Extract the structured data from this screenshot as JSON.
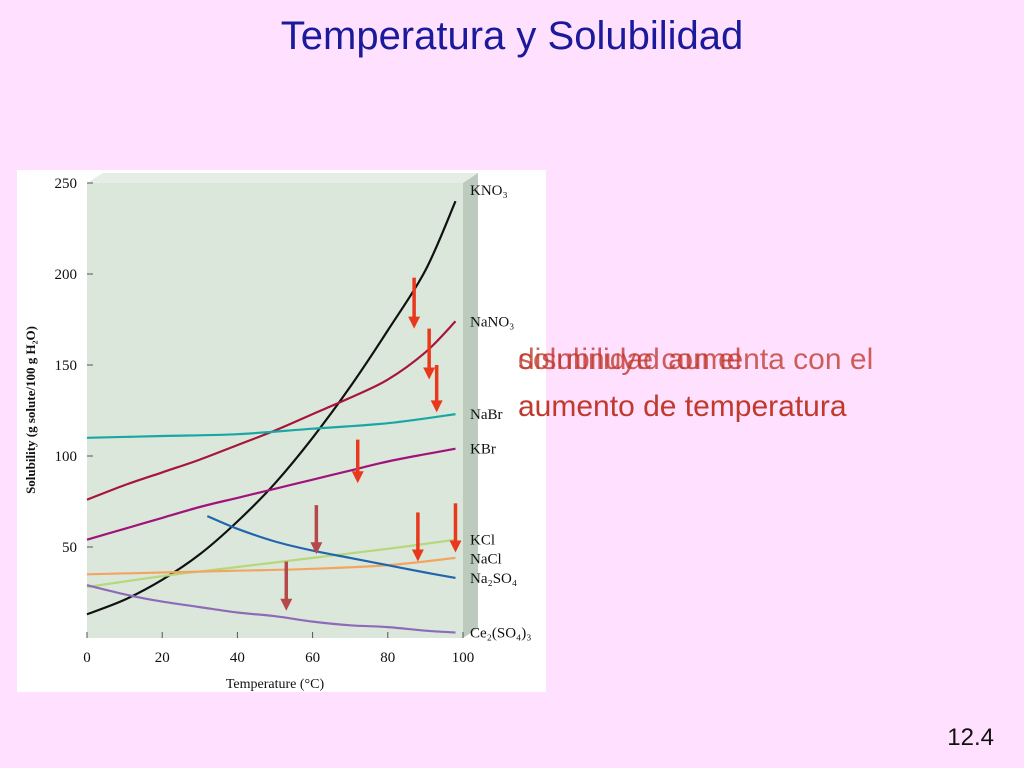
{
  "slide": {
    "title": "Temperatura y Solubilidad",
    "overlay_text_1": "solubilidad aumenta con el",
    "overlay_text_2": "disminuye con el",
    "overlay_text_3": "aumento de temperatura",
    "slide_number": "12.4",
    "colors": {
      "background": "#FFE1FF",
      "title": "#1A1A9A",
      "overlay_text": "#C0392B",
      "arrow_bright": "#E8391C",
      "arrow_muted": "#B5494A"
    }
  },
  "chart_data": {
    "type": "line",
    "xlabel": "Temperature (°C)",
    "ylabel": "Solubility (g solute/100 g H₂O)",
    "xlim": [
      0,
      100
    ],
    "ylim": [
      0,
      250
    ],
    "x_ticks": [
      0,
      20,
      40,
      60,
      80,
      100
    ],
    "y_ticks": [
      50,
      100,
      150,
      200,
      250
    ],
    "grid": false,
    "series": [
      {
        "name": "KNO₃",
        "color": "#111111",
        "x": [
          0,
          10,
          20,
          30,
          40,
          50,
          60,
          70,
          80,
          90,
          98
        ],
        "values": [
          13,
          21,
          32,
          46,
          64,
          85,
          110,
          138,
          169,
          202,
          240
        ]
      },
      {
        "name": "NaNO₃",
        "color": "#A6153A",
        "x": [
          0,
          10,
          20,
          30,
          40,
          50,
          60,
          70,
          80,
          90,
          98
        ],
        "values": [
          76,
          84,
          91,
          98,
          106,
          114,
          123,
          132,
          142,
          157,
          174
        ]
      },
      {
        "name": "NaBr",
        "color": "#1AA7A4",
        "x": [
          0,
          20,
          40,
          60,
          80,
          98
        ],
        "values": [
          110,
          111,
          112,
          115,
          118,
          123
        ]
      },
      {
        "name": "KBr",
        "color": "#A0147A",
        "x": [
          0,
          10,
          20,
          30,
          40,
          50,
          60,
          70,
          80,
          90,
          98
        ],
        "values": [
          54,
          60,
          66,
          72,
          77,
          82,
          87,
          92,
          97,
          101,
          104
        ]
      },
      {
        "name": "KCl",
        "color": "#B5D87A",
        "x": [
          0,
          20,
          40,
          60,
          80,
          98
        ],
        "values": [
          28,
          34,
          39,
          44,
          49,
          54
        ]
      },
      {
        "name": "NaCl",
        "color": "#F4A460",
        "x": [
          0,
          20,
          40,
          60,
          80,
          98
        ],
        "values": [
          35,
          36,
          37,
          38,
          40,
          44
        ]
      },
      {
        "name": "Na₂SO₄",
        "color": "#2166AC",
        "x": [
          32,
          40,
          50,
          60,
          70,
          80,
          90,
          98
        ],
        "values": [
          67,
          60,
          53,
          48,
          44,
          40,
          36,
          33
        ]
      },
      {
        "name": "Ce₂(SO₄)₃",
        "color": "#8E6BB8",
        "x": [
          0,
          10,
          20,
          30,
          40,
          50,
          60,
          70,
          80,
          90,
          98
        ],
        "values": [
          29,
          24,
          20,
          17,
          14,
          12,
          9,
          7,
          6,
          4,
          3
        ]
      }
    ],
    "legend_placement": "right, at line ends"
  }
}
